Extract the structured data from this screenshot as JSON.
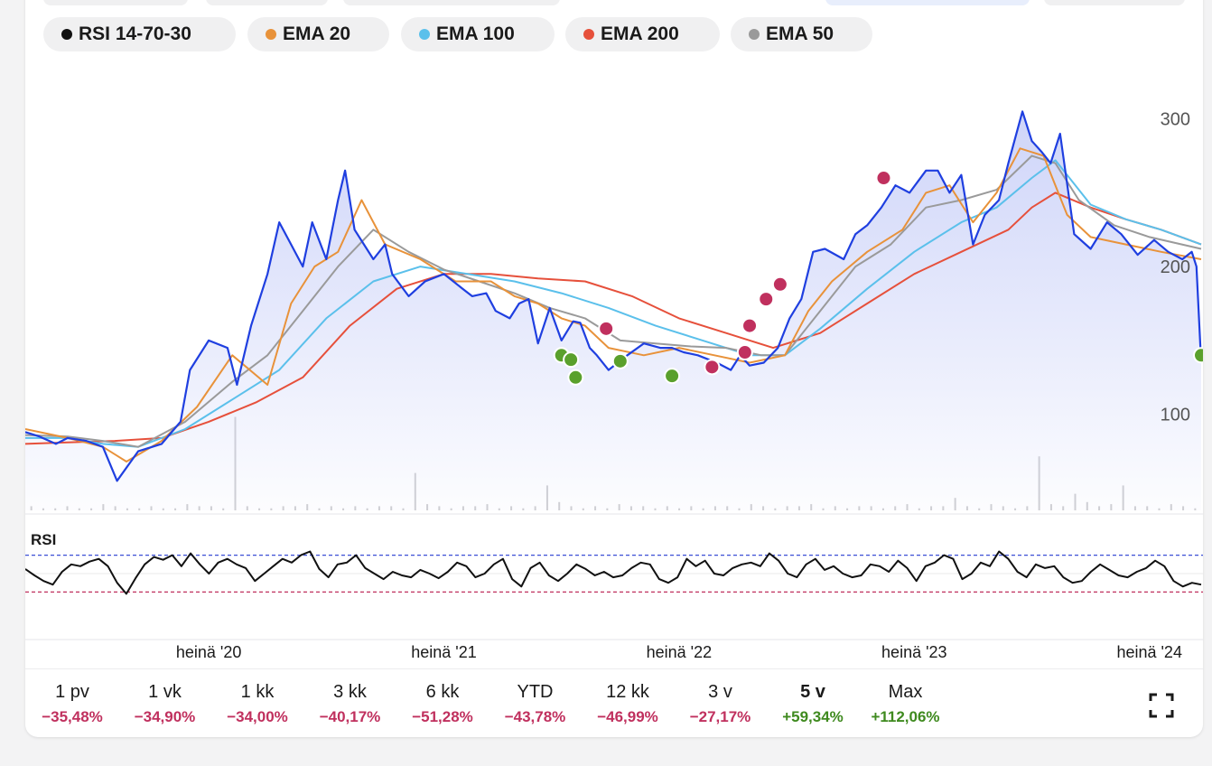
{
  "legend": [
    {
      "label": "RSI 14-70-30",
      "color": "#111111"
    },
    {
      "label": "EMA 20",
      "color": "#e8923a"
    },
    {
      "label": "EMA 100",
      "color": "#5bc0eb"
    },
    {
      "label": "EMA 200",
      "color": "#e6503b"
    },
    {
      "label": "EMA 50",
      "color": "#9a9a9a"
    }
  ],
  "periods": [
    {
      "label": "1 pv",
      "change": "−35,48%",
      "direction": "down"
    },
    {
      "label": "1 vk",
      "change": "−34,90%",
      "direction": "down"
    },
    {
      "label": "1 kk",
      "change": "−34,00%",
      "direction": "down"
    },
    {
      "label": "3 kk",
      "change": "−40,17%",
      "direction": "down"
    },
    {
      "label": "6 kk",
      "change": "−51,28%",
      "direction": "down"
    },
    {
      "label": "YTD",
      "change": "−43,78%",
      "direction": "down"
    },
    {
      "label": "12 kk",
      "change": "−46,99%",
      "direction": "down"
    },
    {
      "label": "3 v",
      "change": "−27,17%",
      "direction": "down"
    },
    {
      "label": "5 v",
      "change": "+59,34%",
      "direction": "up",
      "active": true
    },
    {
      "label": "Max",
      "change": "+112,06%",
      "direction": "up"
    }
  ],
  "colors": {
    "price": "#1f3fe0",
    "area_top": "#c9d0f8",
    "ema20": "#e8923a",
    "ema50": "#9a9a9a",
    "ema100": "#5bc0eb",
    "ema200": "#e6503b",
    "buy_marker": "#5aa02c",
    "sell_marker": "#c0305e",
    "down": "#c0305e",
    "up": "#3f8a1f"
  },
  "icons": {
    "fullscreen": "expand-icon"
  },
  "chart_data": {
    "type": "line",
    "ylim": [
      35,
      345
    ],
    "yticks": [
      100,
      200,
      300
    ],
    "x_ticks": [
      "heinä '20",
      "heinä '21",
      "heinä '22",
      "heinä '23",
      "heinä '24"
    ],
    "x_tick_positions": [
      2020.5,
      2021.5,
      2022.5,
      2023.5,
      2024.5
    ],
    "xlim": [
      2019.72,
      2024.72
    ],
    "series": [
      {
        "name": "price",
        "x": [
          2019.72,
          2019.78,
          2019.85,
          2019.9,
          2019.98,
          2020.05,
          2020.11,
          2020.2,
          2020.3,
          2020.38,
          2020.42,
          2020.5,
          2020.58,
          2020.62,
          2020.68,
          2020.75,
          2020.8,
          2020.85,
          2020.9,
          2020.94,
          2021.0,
          2021.05,
          2021.08,
          2021.12,
          2021.2,
          2021.25,
          2021.28,
          2021.35,
          2021.42,
          2021.5,
          2021.58,
          2021.62,
          2021.68,
          2021.72,
          2021.78,
          2021.82,
          2021.86,
          2021.9,
          2021.95,
          2022.0,
          2022.05,
          2022.08,
          2022.12,
          2022.15,
          2022.2,
          2022.28,
          2022.35,
          2022.42,
          2022.47,
          2022.52,
          2022.58,
          2022.66,
          2022.72,
          2022.76,
          2022.8,
          2022.86,
          2022.92,
          2022.97,
          2023.02,
          2023.07,
          2023.12,
          2023.2,
          2023.25,
          2023.3,
          2023.36,
          2023.42,
          2023.48,
          2023.55,
          2023.6,
          2023.65,
          2023.7,
          2023.75,
          2023.8,
          2023.86,
          2023.9,
          2023.96,
          2024.0,
          2024.04,
          2024.08,
          2024.12,
          2024.18,
          2024.25,
          2024.32,
          2024.38,
          2024.45,
          2024.52,
          2024.58,
          2024.64,
          2024.68,
          2024.7,
          2024.72
        ],
        "values": [
          88,
          85,
          80,
          84,
          82,
          78,
          55,
          75,
          80,
          95,
          130,
          150,
          145,
          120,
          160,
          195,
          230,
          215,
          200,
          230,
          205,
          245,
          265,
          225,
          205,
          215,
          195,
          180,
          190,
          195,
          185,
          180,
          182,
          170,
          165,
          175,
          178,
          148,
          172,
          150,
          163,
          162,
          145,
          140,
          130,
          140,
          148,
          145,
          145,
          142,
          140,
          135,
          130,
          140,
          133,
          135,
          145,
          165,
          178,
          210,
          212,
          205,
          222,
          228,
          240,
          255,
          250,
          265,
          265,
          250,
          262,
          215,
          235,
          245,
          270,
          305,
          285,
          278,
          270,
          290,
          222,
          212,
          230,
          222,
          208,
          218,
          210,
          205,
          210,
          200,
          135
        ]
      },
      {
        "name": "EMA 20",
        "x": [
          2019.72,
          2019.9,
          2020.05,
          2020.15,
          2020.3,
          2020.45,
          2020.6,
          2020.75,
          2020.85,
          2020.95,
          2021.05,
          2021.15,
          2021.25,
          2021.4,
          2021.55,
          2021.7,
          2021.8,
          2021.9,
          2022.0,
          2022.1,
          2022.2,
          2022.35,
          2022.5,
          2022.65,
          2022.8,
          2022.95,
          2023.05,
          2023.15,
          2023.3,
          2023.45,
          2023.55,
          2023.65,
          2023.75,
          2023.85,
          2023.95,
          2024.05,
          2024.15,
          2024.25,
          2024.4,
          2024.55,
          2024.72
        ],
        "values": [
          90,
          84,
          78,
          68,
          82,
          105,
          140,
          120,
          175,
          200,
          210,
          245,
          215,
          205,
          190,
          190,
          180,
          175,
          165,
          160,
          145,
          140,
          145,
          140,
          135,
          140,
          170,
          190,
          210,
          225,
          250,
          255,
          230,
          250,
          280,
          275,
          235,
          220,
          215,
          210,
          205
        ]
      },
      {
        "name": "EMA 50",
        "x": [
          2019.72,
          2019.9,
          2020.05,
          2020.2,
          2020.4,
          2020.6,
          2020.75,
          2020.9,
          2021.05,
          2021.2,
          2021.35,
          2021.5,
          2021.65,
          2021.8,
          2021.95,
          2022.1,
          2022.25,
          2022.4,
          2022.55,
          2022.7,
          2022.85,
          2022.95,
          2023.1,
          2023.25,
          2023.4,
          2023.55,
          2023.7,
          2023.85,
          2024.0,
          2024.1,
          2024.2,
          2024.35,
          2024.5,
          2024.72
        ],
        "values": [
          86,
          85,
          82,
          78,
          95,
          122,
          140,
          170,
          200,
          225,
          210,
          198,
          190,
          182,
          172,
          165,
          150,
          148,
          146,
          145,
          140,
          140,
          170,
          200,
          215,
          240,
          245,
          252,
          275,
          270,
          245,
          228,
          220,
          212
        ]
      },
      {
        "name": "EMA 100",
        "x": [
          2019.72,
          2019.9,
          2020.05,
          2020.2,
          2020.4,
          2020.6,
          2020.8,
          2021.0,
          2021.2,
          2021.4,
          2021.6,
          2021.8,
          2022.0,
          2022.2,
          2022.4,
          2022.6,
          2022.8,
          2022.95,
          2023.1,
          2023.3,
          2023.5,
          2023.7,
          2023.85,
          2024.0,
          2024.1,
          2024.25,
          2024.4,
          2024.55,
          2024.72
        ],
        "values": [
          84,
          84,
          80,
          78,
          90,
          110,
          130,
          165,
          190,
          200,
          195,
          190,
          182,
          172,
          160,
          150,
          140,
          140,
          158,
          185,
          210,
          230,
          240,
          260,
          272,
          242,
          232,
          225,
          215
        ]
      },
      {
        "name": "EMA 200",
        "x": [
          2019.72,
          2019.9,
          2020.1,
          2020.3,
          2020.5,
          2020.7,
          2020.9,
          2021.1,
          2021.3,
          2021.5,
          2021.7,
          2021.9,
          2022.1,
          2022.3,
          2022.5,
          2022.7,
          2022.9,
          2023.1,
          2023.3,
          2023.5,
          2023.7,
          2023.9,
          2024.0,
          2024.1,
          2024.25,
          2024.4,
          2024.55,
          2024.72
        ],
        "values": [
          80,
          81,
          82,
          84,
          95,
          108,
          125,
          160,
          185,
          195,
          195,
          192,
          190,
          180,
          165,
          155,
          145,
          155,
          175,
          195,
          210,
          225,
          240,
          250,
          240,
          232,
          225,
          215
        ]
      }
    ],
    "buy_markers": {
      "x": [
        2022.0,
        2022.04,
        2022.06,
        2022.25,
        2022.47,
        2024.72
      ],
      "values": [
        140,
        137,
        125,
        136,
        126,
        140
      ]
    },
    "sell_markers": {
      "x": [
        2022.19,
        2022.64,
        2022.78,
        2022.8,
        2022.87,
        2022.93,
        2023.37
      ],
      "values": [
        158,
        132,
        142,
        160,
        178,
        188,
        260
      ]
    },
    "rsi": {
      "label": "RSI",
      "upper": 70,
      "lower": 30,
      "values": [
        55,
        48,
        42,
        38,
        52,
        60,
        58,
        63,
        66,
        58,
        40,
        28,
        45,
        60,
        68,
        65,
        70,
        58,
        72,
        60,
        50,
        62,
        66,
        60,
        56,
        42,
        50,
        58,
        66,
        62,
        70,
        74,
        55,
        46,
        60,
        62,
        70,
        56,
        50,
        44,
        52,
        48,
        46,
        54,
        50,
        45,
        52,
        62,
        58,
        46,
        50,
        60,
        66,
        44,
        36,
        56,
        62,
        48,
        42,
        50,
        60,
        55,
        48,
        52,
        46,
        48,
        56,
        62,
        60,
        44,
        40,
        46,
        66,
        58,
        64,
        50,
        48,
        56,
        60,
        62,
        58,
        72,
        64,
        50,
        46,
        60,
        66,
        54,
        58,
        50,
        46,
        48,
        60,
        58,
        52,
        64,
        56,
        42,
        58,
        62,
        70,
        66,
        44,
        50,
        62,
        58,
        74,
        66,
        52,
        46,
        60,
        56,
        58,
        46,
        40,
        42,
        52,
        60,
        54,
        48,
        46,
        52,
        56,
        64,
        58,
        42,
        36,
        40,
        38
      ]
    },
    "volume": [
      2,
      1,
      1,
      2,
      1,
      1,
      3,
      2,
      1,
      1,
      2,
      1,
      1,
      3,
      2,
      2,
      1,
      45,
      2,
      1,
      1,
      2,
      2,
      3,
      1,
      2,
      1,
      2,
      1,
      2,
      2,
      1,
      18,
      3,
      2,
      1,
      2,
      2,
      3,
      1,
      2,
      1,
      2,
      12,
      4,
      2,
      1,
      2,
      1,
      3,
      2,
      2,
      1,
      2,
      1,
      2,
      1,
      2,
      2,
      1,
      3,
      2,
      1,
      2,
      2,
      3,
      1,
      2,
      1,
      2,
      2,
      1,
      2,
      3,
      1,
      2,
      2,
      6,
      2,
      1,
      3,
      2,
      1,
      2,
      26,
      3,
      2,
      8,
      4,
      2,
      3,
      12,
      2,
      2,
      1,
      3,
      2,
      1
    ]
  }
}
